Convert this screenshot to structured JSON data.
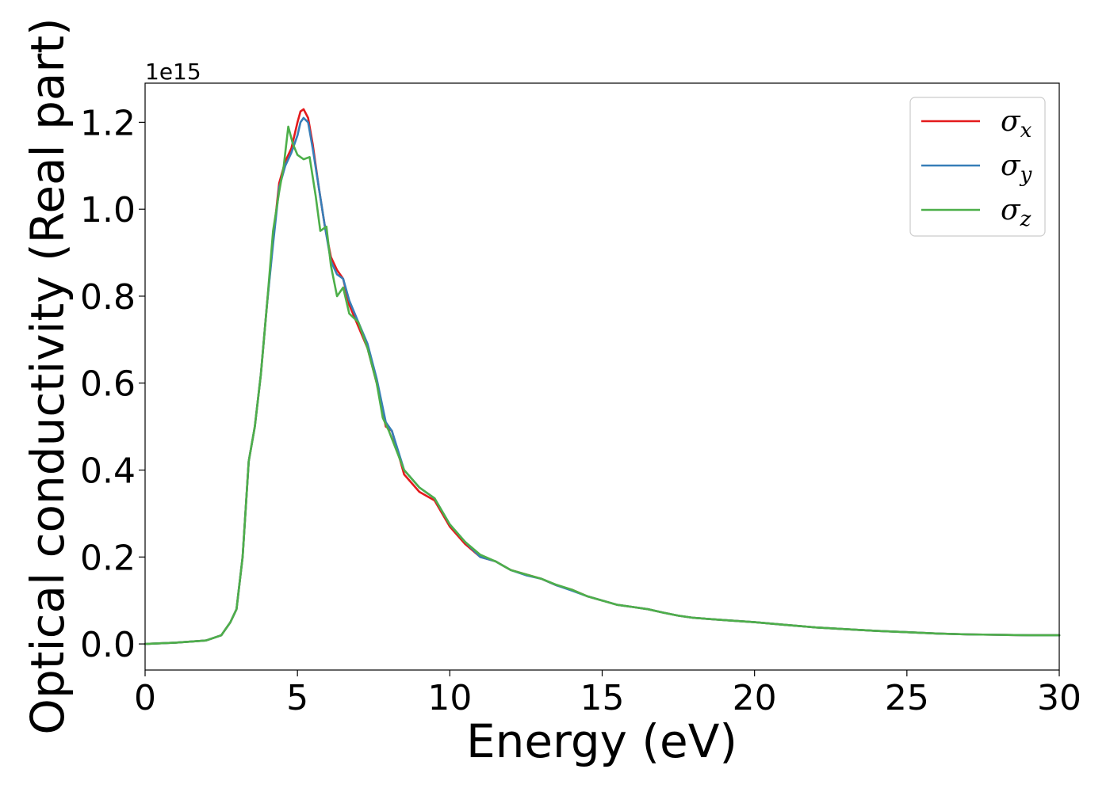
{
  "chart_data": {
    "type": "line",
    "xlabel": "Energy (eV)",
    "ylabel": "Optical conductivity (Real part)",
    "y_offset_text": "1e15",
    "y_scale_factor": 1000000000000000.0,
    "xlim": [
      0,
      30
    ],
    "ylim": [
      -0.06,
      1.29
    ],
    "x_ticks": [
      0,
      5,
      10,
      15,
      20,
      25,
      30
    ],
    "x_tick_labels": [
      "0",
      "5",
      "10",
      "15",
      "20",
      "25",
      "30"
    ],
    "y_ticks": [
      0.0,
      0.2,
      0.4,
      0.6,
      0.8,
      1.0,
      1.2
    ],
    "y_tick_labels": [
      "0.0",
      "0.2",
      "0.4",
      "0.6",
      "0.8",
      "1.0",
      "1.2"
    ],
    "grid": false,
    "legend_position": "top-right",
    "series": [
      {
        "name": "σx",
        "legend_symbol": "σ",
        "legend_subscript": "x",
        "color": "#e41a1c",
        "x": [
          0,
          1,
          2,
          2.5,
          2.8,
          3.0,
          3.2,
          3.4,
          3.6,
          3.8,
          4.0,
          4.2,
          4.4,
          4.6,
          4.8,
          5.0,
          5.1,
          5.2,
          5.35,
          5.5,
          5.7,
          5.9,
          6.1,
          6.3,
          6.5,
          6.7,
          7.0,
          7.3,
          7.6,
          7.9,
          8.1,
          8.5,
          9.0,
          9.5,
          10.0,
          10.5,
          11.0,
          11.5,
          12.0,
          12.5,
          13.0,
          13.5,
          14.0,
          14.5,
          15.0,
          15.5,
          16.0,
          16.5,
          17.0,
          17.5,
          18.0,
          19.0,
          20.0,
          21.0,
          22.0,
          23.0,
          24.0,
          25.0,
          26.0,
          27.0,
          28.0,
          29.0,
          30.0
        ],
        "y": [
          0.0,
          0.003,
          0.008,
          0.02,
          0.05,
          0.08,
          0.2,
          0.42,
          0.5,
          0.62,
          0.78,
          0.93,
          1.06,
          1.11,
          1.14,
          1.2,
          1.225,
          1.23,
          1.21,
          1.15,
          1.05,
          0.96,
          0.89,
          0.86,
          0.84,
          0.78,
          0.73,
          0.68,
          0.6,
          0.5,
          0.49,
          0.39,
          0.35,
          0.33,
          0.27,
          0.23,
          0.2,
          0.19,
          0.17,
          0.16,
          0.15,
          0.135,
          0.125,
          0.11,
          0.1,
          0.09,
          0.085,
          0.08,
          0.072,
          0.065,
          0.06,
          0.055,
          0.05,
          0.044,
          0.038,
          0.034,
          0.03,
          0.027,
          0.024,
          0.022,
          0.021,
          0.02,
          0.02
        ]
      },
      {
        "name": "σy",
        "legend_symbol": "σ",
        "legend_subscript": "y",
        "color": "#377eb8",
        "x": [
          0,
          1,
          2,
          2.5,
          2.8,
          3.0,
          3.2,
          3.4,
          3.6,
          3.8,
          4.0,
          4.2,
          4.4,
          4.6,
          4.8,
          5.0,
          5.1,
          5.2,
          5.35,
          5.5,
          5.7,
          5.9,
          6.1,
          6.3,
          6.5,
          6.7,
          7.0,
          7.3,
          7.6,
          7.9,
          8.1,
          8.5,
          9.0,
          9.5,
          10.0,
          10.5,
          11.0,
          11.5,
          12.0,
          12.5,
          13.0,
          13.5,
          14.0,
          14.5,
          15.0,
          15.5,
          16.0,
          16.5,
          17.0,
          17.5,
          18.0,
          19.0,
          20.0,
          21.0,
          22.0,
          23.0,
          24.0,
          25.0,
          26.0,
          27.0,
          28.0,
          29.0,
          30.0
        ],
        "y": [
          0.0,
          0.003,
          0.008,
          0.02,
          0.05,
          0.08,
          0.2,
          0.42,
          0.5,
          0.62,
          0.78,
          0.92,
          1.05,
          1.1,
          1.13,
          1.17,
          1.2,
          1.21,
          1.2,
          1.14,
          1.05,
          0.96,
          0.88,
          0.85,
          0.84,
          0.79,
          0.74,
          0.69,
          0.61,
          0.51,
          0.49,
          0.4,
          0.36,
          0.335,
          0.275,
          0.235,
          0.2,
          0.19,
          0.17,
          0.158,
          0.15,
          0.135,
          0.123,
          0.11,
          0.1,
          0.09,
          0.085,
          0.08,
          0.072,
          0.065,
          0.06,
          0.055,
          0.05,
          0.044,
          0.038,
          0.034,
          0.03,
          0.027,
          0.024,
          0.022,
          0.021,
          0.02,
          0.02
        ]
      },
      {
        "name": "σz",
        "legend_symbol": "σ",
        "legend_subscript": "z",
        "color": "#4daf4a",
        "x": [
          0,
          1,
          2,
          2.5,
          2.8,
          3.0,
          3.2,
          3.4,
          3.6,
          3.8,
          4.0,
          4.2,
          4.4,
          4.55,
          4.7,
          4.85,
          5.0,
          5.2,
          5.4,
          5.6,
          5.75,
          5.95,
          6.1,
          6.3,
          6.5,
          6.7,
          7.0,
          7.3,
          7.6,
          7.8,
          8.0,
          8.5,
          9.0,
          9.5,
          10.0,
          10.5,
          11.0,
          11.5,
          12.0,
          12.5,
          13.0,
          13.5,
          14.0,
          14.5,
          15.0,
          15.5,
          16.0,
          16.5,
          17.0,
          17.5,
          18.0,
          19.0,
          20.0,
          21.0,
          22.0,
          23.0,
          24.0,
          25.0,
          26.0,
          27.0,
          28.0,
          29.0,
          30.0
        ],
        "y": [
          0.0,
          0.003,
          0.008,
          0.02,
          0.05,
          0.08,
          0.2,
          0.42,
          0.5,
          0.62,
          0.78,
          0.95,
          1.04,
          1.1,
          1.19,
          1.15,
          1.125,
          1.115,
          1.12,
          1.03,
          0.95,
          0.96,
          0.87,
          0.8,
          0.82,
          0.76,
          0.74,
          0.68,
          0.6,
          0.52,
          0.49,
          0.4,
          0.36,
          0.335,
          0.275,
          0.235,
          0.205,
          0.19,
          0.17,
          0.16,
          0.15,
          0.136,
          0.125,
          0.11,
          0.1,
          0.09,
          0.085,
          0.08,
          0.072,
          0.065,
          0.06,
          0.055,
          0.05,
          0.044,
          0.038,
          0.034,
          0.03,
          0.027,
          0.024,
          0.022,
          0.021,
          0.02,
          0.02
        ]
      }
    ]
  }
}
